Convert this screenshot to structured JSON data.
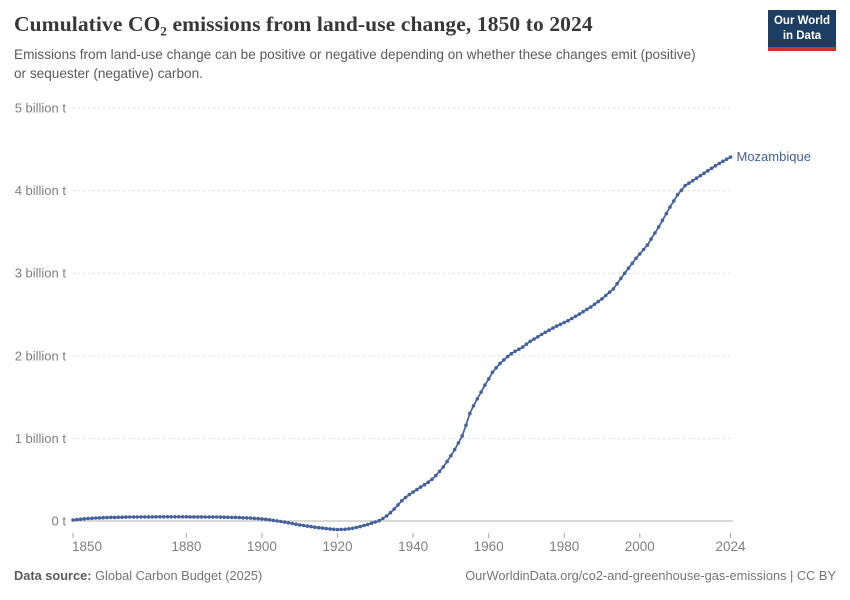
{
  "header": {
    "title": "Cumulative CO₂ emissions from land-use change, 1850 to 2024",
    "subtitle": "Emissions from land-use change can be positive or negative depending on whether these changes emit (positive) or sequester (negative) carbon.",
    "logo": {
      "line1": "Our World",
      "line2": "in Data"
    }
  },
  "footer": {
    "source_label": "Data source:",
    "source_value": " Global Carbon Budget (2025)",
    "citation": "OurWorldinData.org/co2-and-greenhouse-gas-emissions | CC BY"
  },
  "chart_data": {
    "type": "line",
    "title": "Cumulative CO₂ emissions from land-use change, 1850 to 2024",
    "x": {
      "min": 1850,
      "max": 2024,
      "ticks": [
        1850,
        1880,
        1900,
        1920,
        1940,
        1960,
        1980,
        2000,
        2024
      ]
    },
    "y": {
      "min": -0.15,
      "max": 5,
      "ticks": [
        {
          "value": 0,
          "label": "0 t"
        },
        {
          "value": 1,
          "label": "1 billion t"
        },
        {
          "value": 2,
          "label": "2 billion t"
        },
        {
          "value": 3,
          "label": "3 billion t"
        },
        {
          "value": 4,
          "label": "4 billion t"
        },
        {
          "value": 5,
          "label": "5 billion t"
        }
      ]
    },
    "grid": "dashed-horizontal",
    "legend_position": "end-of-line-label",
    "unit_short": "billion t",
    "series": [
      {
        "name": "Mozambique",
        "color": "#45619C",
        "points": [
          [
            1850,
            0.012
          ],
          [
            1853,
            0.027
          ],
          [
            1856,
            0.036
          ],
          [
            1860,
            0.043
          ],
          [
            1865,
            0.048
          ],
          [
            1870,
            0.05
          ],
          [
            1876,
            0.051
          ],
          [
            1882,
            0.05
          ],
          [
            1888,
            0.048
          ],
          [
            1893,
            0.043
          ],
          [
            1897,
            0.035
          ],
          [
            1900,
            0.026
          ],
          [
            1902,
            0.014
          ],
          [
            1904,
            0.001
          ],
          [
            1906,
            -0.013
          ],
          [
            1908,
            -0.03
          ],
          [
            1911,
            -0.055
          ],
          [
            1914,
            -0.075
          ],
          [
            1917,
            -0.092
          ],
          [
            1920,
            -0.104
          ],
          [
            1922,
            -0.1
          ],
          [
            1924,
            -0.088
          ],
          [
            1926,
            -0.068
          ],
          [
            1928,
            -0.042
          ],
          [
            1930,
            -0.012
          ],
          [
            1931,
            0.004
          ],
          [
            1932,
            0.03
          ],
          [
            1933,
            0.06
          ],
          [
            1934,
            0.1
          ],
          [
            1935,
            0.145
          ],
          [
            1936,
            0.195
          ],
          [
            1937,
            0.245
          ],
          [
            1938,
            0.285
          ],
          [
            1939,
            0.32
          ],
          [
            1940,
            0.35
          ],
          [
            1941,
            0.38
          ],
          [
            1942,
            0.41
          ],
          [
            1943,
            0.44
          ],
          [
            1944,
            0.47
          ],
          [
            1945,
            0.505
          ],
          [
            1946,
            0.55
          ],
          [
            1947,
            0.6
          ],
          [
            1948,
            0.655
          ],
          [
            1949,
            0.72
          ],
          [
            1950,
            0.79
          ],
          [
            1951,
            0.865
          ],
          [
            1952,
            0.945
          ],
          [
            1953,
            1.03
          ],
          [
            1954,
            1.16
          ],
          [
            1955,
            1.3
          ],
          [
            1956,
            1.395
          ],
          [
            1957,
            1.48
          ],
          [
            1958,
            1.56
          ],
          [
            1959,
            1.645
          ],
          [
            1960,
            1.72
          ],
          [
            1961,
            1.8
          ],
          [
            1962,
            1.855
          ],
          [
            1963,
            1.905
          ],
          [
            1964,
            1.95
          ],
          [
            1965,
            1.99
          ],
          [
            1966,
            2.025
          ],
          [
            1967,
            2.055
          ],
          [
            1968,
            2.08
          ],
          [
            1969,
            2.105
          ],
          [
            1971,
            2.175
          ],
          [
            1973,
            2.23
          ],
          [
            1975,
            2.285
          ],
          [
            1978,
            2.36
          ],
          [
            1981,
            2.425
          ],
          [
            1984,
            2.505
          ],
          [
            1987,
            2.59
          ],
          [
            1990,
            2.69
          ],
          [
            1993,
            2.81
          ],
          [
            1996,
            3.0
          ],
          [
            1999,
            3.18
          ],
          [
            2002,
            3.34
          ],
          [
            2005,
            3.56
          ],
          [
            2008,
            3.8
          ],
          [
            2010,
            3.95
          ],
          [
            2012,
            4.06
          ],
          [
            2014,
            4.12
          ],
          [
            2016,
            4.18
          ],
          [
            2018,
            4.24
          ],
          [
            2020,
            4.3
          ],
          [
            2022,
            4.355
          ],
          [
            2024,
            4.405
          ]
        ]
      }
    ]
  }
}
